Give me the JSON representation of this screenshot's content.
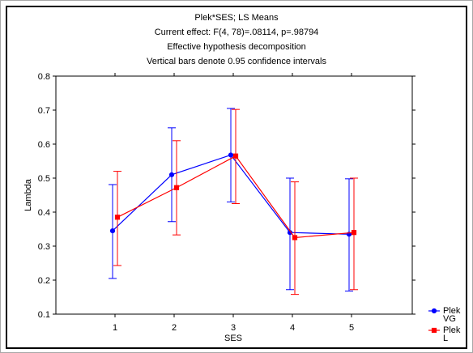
{
  "chart_data": {
    "type": "line",
    "title_lines": [
      "Plek*SES; LS Means",
      "Current effect: F(4, 78)=.08114, p=.98794",
      "Effective hypothesis decomposition",
      "Vertical bars denote 0.95 confidence intervals"
    ],
    "xlabel": "SES",
    "ylabel": "Lambda",
    "categories": [
      "1",
      "2",
      "3",
      "4",
      "5"
    ],
    "ylim": [
      0.1,
      0.8
    ],
    "yticks": [
      "0.1",
      "0.2",
      "0.3",
      "0.4",
      "0.5",
      "0.6",
      "0.7",
      "0.8"
    ],
    "grid": false,
    "legend_position": "bottom-right",
    "series": [
      {
        "name_lines": [
          "Plek",
          "VG"
        ],
        "color": "#0000ff",
        "marker": "circle",
        "values": [
          0.345,
          0.51,
          0.568,
          0.34,
          0.335
        ],
        "ci_low": [
          0.205,
          0.372,
          0.43,
          0.172,
          0.168
        ],
        "ci_high": [
          0.481,
          0.648,
          0.705,
          0.5,
          0.498
        ]
      },
      {
        "name_lines": [
          "Plek",
          "L"
        ],
        "color": "#ff0000",
        "marker": "square",
        "values": [
          0.385,
          0.472,
          0.565,
          0.325,
          0.34
        ],
        "ci_low": [
          0.243,
          0.333,
          0.425,
          0.158,
          0.172
        ],
        "ci_high": [
          0.52,
          0.61,
          0.702,
          0.489,
          0.5
        ]
      }
    ]
  }
}
